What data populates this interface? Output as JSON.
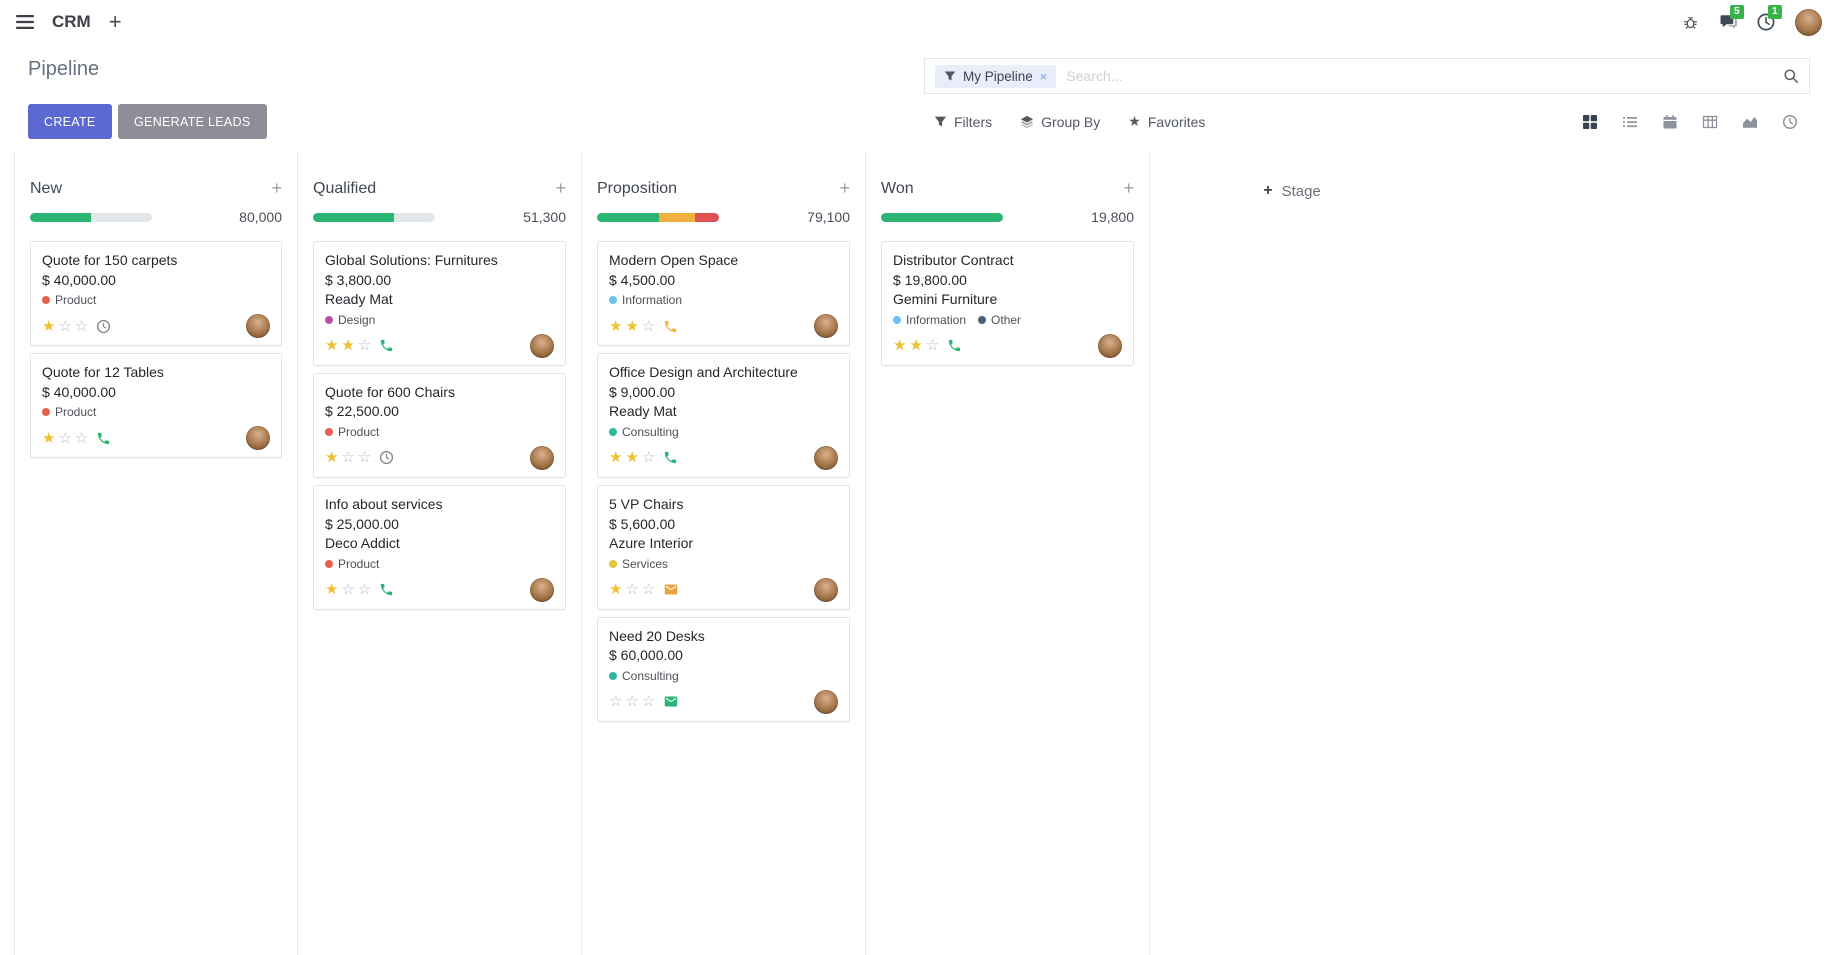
{
  "colors": {
    "primary": "#5d69d3",
    "secondary": "#8d8e98",
    "success": "#2ab672",
    "warning": "#f0b03f",
    "danger": "#e05252",
    "star": "#f0c12e",
    "badge": "#38b44a"
  },
  "icons": {
    "menu": "hamburger-menu",
    "plus": "+",
    "close": "×",
    "star_filled": "★",
    "star_empty": "☆"
  },
  "navbar": {
    "app_name": "CRM",
    "message_badge": "5",
    "activity_badge": "1"
  },
  "control_panel": {
    "title": "Pipeline",
    "create_label": "CREATE",
    "generate_leads_label": "GENERATE LEADS",
    "facet_label": "My Pipeline",
    "search_placeholder": "Search...",
    "filters_label": "Filters",
    "group_by_label": "Group By",
    "favorites_label": "Favorites",
    "views": [
      {
        "name": "kanban",
        "active": true
      },
      {
        "name": "list",
        "active": false
      },
      {
        "name": "calendar",
        "active": false
      },
      {
        "name": "pivot",
        "active": false
      },
      {
        "name": "graph",
        "active": false
      },
      {
        "name": "activity",
        "active": false
      }
    ]
  },
  "board": {
    "add_stage_label": "Stage",
    "columns": [
      {
        "name": "New",
        "total": "80,000",
        "progress": [
          {
            "color": "#2ab672",
            "pct": 50
          }
        ],
        "cards": [
          {
            "title": "Quote for 150 carpets",
            "amount": "$ 40,000.00",
            "tags": [
              {
                "label": "Product",
                "color": "#e8604c"
              }
            ],
            "stars": 1,
            "activity": {
              "icon": "clock-icon",
              "color": "#878c92"
            }
          },
          {
            "title": "Quote for 12 Tables",
            "amount": "$ 40,000.00",
            "tags": [
              {
                "label": "Product",
                "color": "#e8604c"
              }
            ],
            "stars": 1,
            "activity": {
              "icon": "phone-icon",
              "color": "#2ab672"
            }
          }
        ]
      },
      {
        "name": "Qualified",
        "total": "51,300",
        "progress": [
          {
            "color": "#2ab672",
            "pct": 66
          }
        ],
        "cards": [
          {
            "title": "Global Solutions: Furnitures",
            "amount": "$ 3,800.00",
            "company": "Ready Mat",
            "tags": [
              {
                "label": "Design",
                "color": "#b14fb1"
              }
            ],
            "stars": 2,
            "activity": {
              "icon": "phone-icon",
              "color": "#2ab672"
            }
          },
          {
            "title": "Quote for 600 Chairs",
            "amount": "$ 22,500.00",
            "tags": [
              {
                "label": "Product",
                "color": "#e8604c"
              }
            ],
            "stars": 1,
            "activity": {
              "icon": "clock-icon",
              "color": "#878c92"
            }
          },
          {
            "title": "Info about services",
            "amount": "$ 25,000.00",
            "company": "Deco Addict",
            "tags": [
              {
                "label": "Product",
                "color": "#e8604c"
              }
            ],
            "stars": 1,
            "activity": {
              "icon": "phone-icon",
              "color": "#2ab672"
            }
          }
        ]
      },
      {
        "name": "Proposition",
        "total": "79,100",
        "progress": [
          {
            "color": "#2ab672",
            "pct": 51
          },
          {
            "color": "#f0b03f",
            "pct": 29
          },
          {
            "color": "#e05252",
            "pct": 20
          }
        ],
        "cards": [
          {
            "title": "Modern Open Space",
            "amount": "$ 4,500.00",
            "tags": [
              {
                "label": "Information",
                "color": "#6ec2e8"
              }
            ],
            "stars": 2,
            "activity": {
              "icon": "phone-icon",
              "color": "#f2b53d"
            }
          },
          {
            "title": "Office Design and Architecture",
            "amount": "$ 9,000.00",
            "company": "Ready Mat",
            "tags": [
              {
                "label": "Consulting",
                "color": "#2fb7a0"
              }
            ],
            "stars": 2,
            "activity": {
              "icon": "phone-icon",
              "color": "#2ab672"
            }
          },
          {
            "title": "5 VP Chairs",
            "amount": "$ 5,600.00",
            "company": "Azure Interior",
            "tags": [
              {
                "label": "Services",
                "color": "#e8c33c"
              }
            ],
            "stars": 1,
            "activity": {
              "icon": "envelope-icon",
              "color": "#e8a33d"
            }
          },
          {
            "title": "Need 20 Desks",
            "amount": "$ 60,000.00",
            "tags": [
              {
                "label": "Consulting",
                "color": "#2fb7a0"
              }
            ],
            "stars": 0,
            "activity": {
              "icon": "envelope-icon",
              "color": "#2ab672"
            }
          }
        ]
      },
      {
        "name": "Won",
        "total": "19,800",
        "progress": [
          {
            "color": "#2ab672",
            "pct": 100
          }
        ],
        "cards": [
          {
            "title": "Distributor Contract",
            "amount": "$ 19,800.00",
            "company": "Gemini Furniture",
            "tags": [
              {
                "label": "Information",
                "color": "#6ec2e8"
              },
              {
                "label": "Other",
                "color": "#475e75"
              }
            ],
            "stars": 2,
            "activity": {
              "icon": "phone-icon",
              "color": "#2ab672"
            }
          }
        ]
      }
    ]
  }
}
